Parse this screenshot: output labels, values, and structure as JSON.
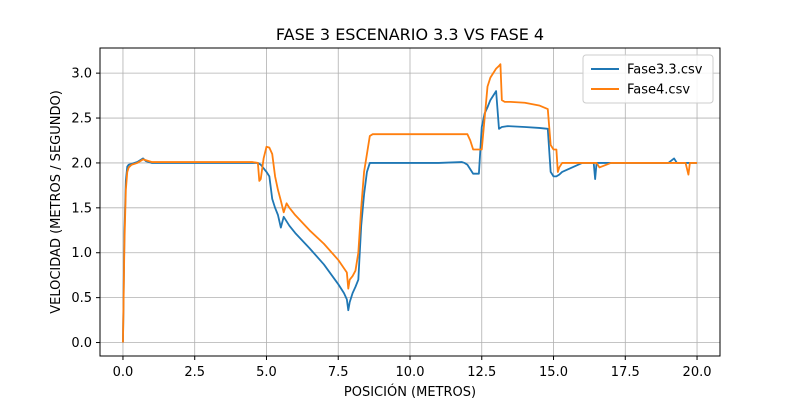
{
  "chart_data": {
    "type": "line",
    "title": "FASE 3 ESCENARIO 3.3 VS FASE 4",
    "xlabel": "POSICIÓN (METROS)",
    "ylabel": "VELOCIDAD (METROS / SEGUNDO)",
    "xlim": [
      -0.8,
      20.8
    ],
    "ylim": [
      -0.15,
      3.28
    ],
    "xticks": [
      0.0,
      2.5,
      5.0,
      7.5,
      10.0,
      12.5,
      15.0,
      17.5,
      20.0
    ],
    "xtick_labels": [
      "0.0",
      "2.5",
      "5.0",
      "7.5",
      "10.0",
      "12.5",
      "15.0",
      "17.5",
      "20.0"
    ],
    "yticks": [
      0.0,
      0.5,
      1.0,
      1.5,
      2.0,
      2.5,
      3.0
    ],
    "ytick_labels": [
      "0.0",
      "0.5",
      "1.0",
      "1.5",
      "2.0",
      "2.5",
      "3.0"
    ],
    "grid": true,
    "legend_position": "top-right",
    "series": [
      {
        "name": "Fase3.3.csv",
        "color": "#1f77b4",
        "x": [
          0.0,
          0.05,
          0.1,
          0.15,
          0.2,
          0.3,
          0.5,
          0.7,
          0.8,
          1.0,
          2.0,
          3.0,
          4.0,
          4.5,
          4.7,
          4.8,
          4.9,
          5.0,
          5.1,
          5.2,
          5.3,
          5.4,
          5.5,
          5.6,
          5.7,
          5.8,
          6.0,
          6.5,
          7.0,
          7.5,
          7.7,
          7.8,
          7.85,
          7.9,
          8.0,
          8.1,
          8.2,
          8.3,
          8.4,
          8.5,
          8.6,
          9.0,
          10.0,
          11.0,
          11.8,
          11.9,
          12.0,
          12.2,
          12.4,
          12.5,
          12.6,
          12.7,
          12.8,
          12.9,
          13.0,
          13.1,
          13.2,
          13.4,
          14.0,
          14.5,
          14.8,
          14.9,
          15.0,
          15.1,
          15.2,
          15.3,
          16.0,
          16.4,
          16.45,
          16.5,
          17.0,
          18.0,
          19.0,
          19.2,
          19.3,
          20.0
        ],
        "y": [
          0.0,
          1.2,
          1.8,
          1.96,
          1.98,
          1.99,
          2.01,
          2.05,
          2.02,
          2.0,
          2.0,
          2.0,
          2.0,
          2.0,
          2.0,
          1.98,
          1.94,
          1.9,
          1.85,
          1.6,
          1.5,
          1.42,
          1.28,
          1.4,
          1.35,
          1.3,
          1.22,
          1.05,
          0.87,
          0.65,
          0.55,
          0.48,
          0.36,
          0.45,
          0.55,
          0.62,
          0.7,
          1.3,
          1.65,
          1.9,
          2.0,
          2.0,
          2.0,
          2.0,
          2.01,
          2.0,
          1.98,
          1.88,
          1.88,
          2.4,
          2.55,
          2.62,
          2.7,
          2.75,
          2.8,
          2.38,
          2.4,
          2.41,
          2.4,
          2.39,
          2.38,
          1.9,
          1.85,
          1.85,
          1.87,
          1.9,
          2.0,
          2.0,
          1.82,
          2.0,
          2.0,
          2.0,
          2.0,
          2.05,
          2.0,
          2.0
        ]
      },
      {
        "name": "Fase4.csv",
        "color": "#ff7f0e",
        "x": [
          0.0,
          0.05,
          0.1,
          0.15,
          0.2,
          0.3,
          0.5,
          0.7,
          0.8,
          1.0,
          2.0,
          3.0,
          4.0,
          4.5,
          4.7,
          4.75,
          4.8,
          4.9,
          5.0,
          5.1,
          5.2,
          5.3,
          5.4,
          5.5,
          5.6,
          5.7,
          5.8,
          6.0,
          6.5,
          7.0,
          7.5,
          7.8,
          7.85,
          7.9,
          8.0,
          8.1,
          8.2,
          8.3,
          8.4,
          8.5,
          8.6,
          8.7,
          9.0,
          10.0,
          11.0,
          12.0,
          12.1,
          12.2,
          12.5,
          12.6,
          12.7,
          12.8,
          12.9,
          13.0,
          13.1,
          13.15,
          13.2,
          13.3,
          13.5,
          14.0,
          14.5,
          14.8,
          14.9,
          15.0,
          15.1,
          15.15,
          15.2,
          15.3,
          16.0,
          16.4,
          16.5,
          16.6,
          17.0,
          18.0,
          19.0,
          19.6,
          19.7,
          19.75,
          19.8,
          20.0
        ],
        "y": [
          0.0,
          1.1,
          1.7,
          1.9,
          1.95,
          1.98,
          2.0,
          2.04,
          2.03,
          2.01,
          2.01,
          2.01,
          2.01,
          2.01,
          2.0,
          1.8,
          1.82,
          2.05,
          2.18,
          2.17,
          2.1,
          1.85,
          1.7,
          1.58,
          1.45,
          1.55,
          1.5,
          1.42,
          1.25,
          1.1,
          0.92,
          0.78,
          0.6,
          0.7,
          0.74,
          0.8,
          1.0,
          1.5,
          1.9,
          2.1,
          2.3,
          2.32,
          2.32,
          2.32,
          2.32,
          2.32,
          2.25,
          2.15,
          2.15,
          2.5,
          2.85,
          2.95,
          3.0,
          3.05,
          3.08,
          3.1,
          2.7,
          2.68,
          2.68,
          2.67,
          2.64,
          2.6,
          2.2,
          2.15,
          2.15,
          1.9,
          1.95,
          2.0,
          2.0,
          2.0,
          2.0,
          1.95,
          2.0,
          2.0,
          2.0,
          2.0,
          1.87,
          2.0,
          2.0,
          2.0
        ]
      }
    ]
  }
}
